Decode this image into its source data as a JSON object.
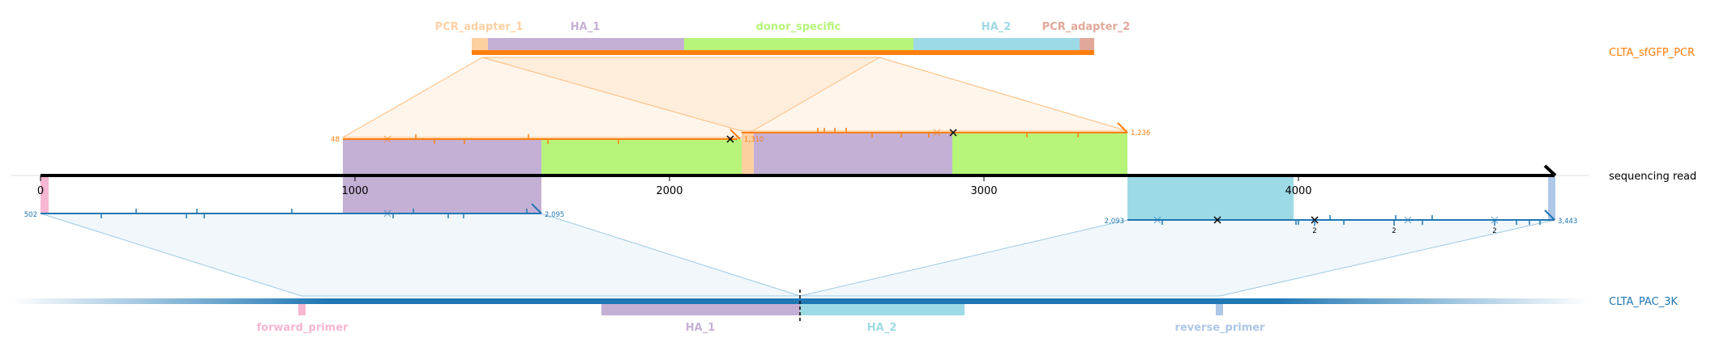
{
  "colors": {
    "pcr_adapter_1": "#fdd0a2",
    "ha_1": "#c5b0d5",
    "donor_specific": "#b6f57a",
    "ha_2": "#9edae5",
    "pcr_adapter_2": "#e0a899",
    "forward_primer": "#f7b6d2",
    "reverse_primer": "#aec7e8",
    "orange": "#ff7f0e",
    "blue": "#1f77b4",
    "read": "#000000"
  },
  "read": {
    "label": "sequencing read",
    "ticks": [
      "0",
      "1000",
      "2000",
      "3000",
      "4000"
    ]
  },
  "pcr_target": {
    "name": "CLTA_sfGFP_PCR",
    "features": {
      "pcr_adapter_1": "PCR_adapter_1",
      "ha_1": "HA_1",
      "donor_specific": "donor_specific",
      "ha_2": "HA_2",
      "pcr_adapter_2": "PCR_adapter_2"
    }
  },
  "genomic_target": {
    "name": "CLTA_PAC_3K",
    "features": {
      "forward_primer": "forward_primer",
      "ha_1": "HA_1",
      "ha_2": "HA_2",
      "reverse_primer": "reverse_primer"
    }
  },
  "alignments": {
    "orange_1": {
      "start": "48",
      "end": "1,310"
    },
    "orange_2": {
      "end": "1,236"
    },
    "blue_1": {
      "start": "502",
      "end": "2,095"
    },
    "blue_2": {
      "start": "2,093",
      "end": "3,443"
    },
    "indel_counts": [
      "2",
      "2",
      "2"
    ]
  }
}
